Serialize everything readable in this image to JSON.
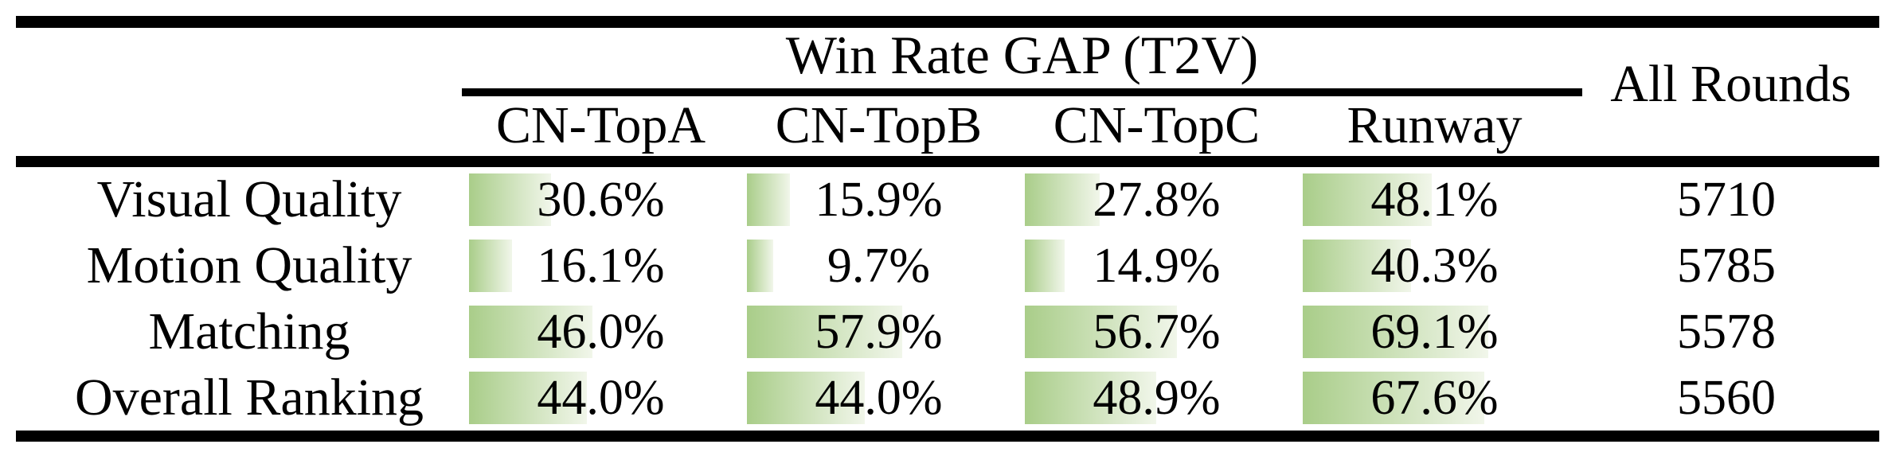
{
  "table": {
    "title": "Win Rate GAP (T2V)",
    "all_rounds_header": "All Rounds",
    "columns": [
      "CN-TopA",
      "CN-TopB",
      "CN-TopC",
      "Runway"
    ],
    "rows": [
      {
        "label": "Visual Quality",
        "values": [
          "30.6%",
          "15.9%",
          "27.8%",
          "48.1%"
        ],
        "rounds": "5710"
      },
      {
        "label": "Motion Quality",
        "values": [
          "16.1%",
          "9.7%",
          "14.9%",
          "40.3%"
        ],
        "rounds": "5785"
      },
      {
        "label": "Matching",
        "values": [
          "46.0%",
          "57.9%",
          "56.7%",
          "69.1%"
        ],
        "rounds": "5578"
      },
      {
        "label": "Overall Ranking",
        "values": [
          "44.0%",
          "44.0%",
          "48.9%",
          "67.6%"
        ],
        "rounds": "5560"
      }
    ],
    "bar_color_left": "#a9cd89",
    "bar_color_right": "#f1f6ea",
    "rule_color": "#000000",
    "text_color": "#000000"
  },
  "chart_data": {
    "type": "table",
    "title": "Win Rate GAP (T2V)",
    "columns": [
      "CN-TopA",
      "CN-TopB",
      "CN-TopC",
      "Runway",
      "All Rounds"
    ],
    "row_labels": [
      "Visual Quality",
      "Motion Quality",
      "Matching",
      "Overall Ranking"
    ],
    "win_rate_gap_percent": [
      [
        30.6,
        15.9,
        27.8,
        48.1
      ],
      [
        16.1,
        9.7,
        14.9,
        40.3
      ],
      [
        46.0,
        57.9,
        56.7,
        69.1
      ],
      [
        44.0,
        44.0,
        48.9,
        67.6
      ]
    ],
    "all_rounds": [
      5710,
      5785,
      5578,
      5560
    ],
    "layout_hint": "in-cell horizontal bars, bar length proportional to percent, 100% equals full column width, green-to-white left-to-right gradient"
  }
}
